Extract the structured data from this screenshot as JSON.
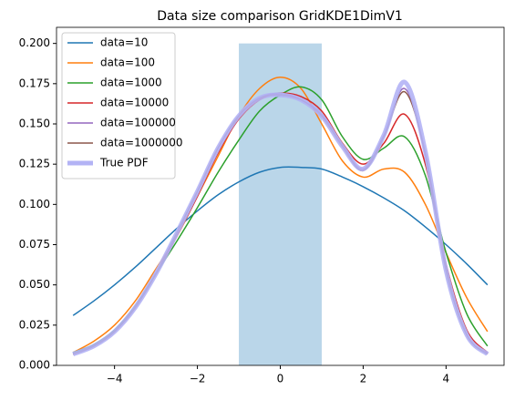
{
  "chart_data": {
    "type": "line",
    "title": "Data size comparison GridKDE1DimV1",
    "x": [
      -5,
      -4.5,
      -4,
      -3.5,
      -3,
      -2.5,
      -2,
      -1.5,
      -1,
      -0.5,
      0,
      0.5,
      1,
      1.5,
      2,
      2.5,
      3,
      3.5,
      4,
      4.5,
      5
    ],
    "series": [
      {
        "name": "data=10",
        "color": "#1f77b4",
        "values": [
          0.031,
          0.04,
          0.05,
          0.061,
          0.073,
          0.085,
          0.096,
          0.106,
          0.114,
          0.12,
          0.123,
          0.123,
          0.122,
          0.117,
          0.111,
          0.104,
          0.096,
          0.086,
          0.075,
          0.063,
          0.05
        ]
      },
      {
        "name": "data=100",
        "color": "#ff7f0e",
        "values": [
          0.008,
          0.015,
          0.025,
          0.04,
          0.06,
          0.08,
          0.105,
          0.13,
          0.155,
          0.172,
          0.179,
          0.172,
          0.15,
          0.127,
          0.117,
          0.122,
          0.12,
          0.1,
          0.07,
          0.042,
          0.021
        ]
      },
      {
        "name": "data=1000",
        "color": "#2ca02c",
        "values": [
          0.008,
          0.013,
          0.022,
          0.037,
          0.057,
          0.077,
          0.098,
          0.12,
          0.14,
          0.158,
          0.168,
          0.173,
          0.165,
          0.142,
          0.128,
          0.135,
          0.142,
          0.118,
          0.07,
          0.032,
          0.012
        ]
      },
      {
        "name": "data=10000",
        "color": "#d62728",
        "values": [
          0.007,
          0.012,
          0.021,
          0.036,
          0.057,
          0.08,
          0.105,
          0.132,
          0.153,
          0.165,
          0.169,
          0.167,
          0.158,
          0.138,
          0.125,
          0.138,
          0.156,
          0.125,
          0.063,
          0.022,
          0.008
        ]
      },
      {
        "name": "data=100000",
        "color": "#9467bd",
        "values": [
          0.007,
          0.012,
          0.021,
          0.036,
          0.057,
          0.082,
          0.108,
          0.135,
          0.155,
          0.166,
          0.169,
          0.165,
          0.156,
          0.137,
          0.122,
          0.143,
          0.172,
          0.132,
          0.06,
          0.019,
          0.007
        ]
      },
      {
        "name": "data=1000000",
        "color": "#8c564b",
        "values": [
          0.007,
          0.012,
          0.021,
          0.036,
          0.057,
          0.082,
          0.108,
          0.135,
          0.155,
          0.166,
          0.168,
          0.165,
          0.155,
          0.136,
          0.121,
          0.142,
          0.17,
          0.131,
          0.059,
          0.019,
          0.007
        ]
      },
      {
        "name": "True PDF",
        "color": "#b3b3f5",
        "width": 5,
        "values": [
          0.007,
          0.012,
          0.021,
          0.036,
          0.057,
          0.082,
          0.108,
          0.135,
          0.155,
          0.166,
          0.168,
          0.165,
          0.155,
          0.136,
          0.122,
          0.143,
          0.176,
          0.133,
          0.059,
          0.019,
          0.007
        ]
      }
    ],
    "span": {
      "x": [
        -1,
        1
      ],
      "y": [
        0,
        0.2
      ],
      "color": "#bad6e9"
    },
    "xlim": [
      -5.4,
      5.4
    ],
    "ylim": [
      0,
      0.21
    ],
    "xticks": [
      {
        "value": -4,
        "label": "−4"
      },
      {
        "value": -2,
        "label": "−2"
      },
      0,
      2,
      4
    ],
    "yticks": [
      {
        "value": 0,
        "label": "0.000"
      },
      {
        "value": 0.025,
        "label": "0.025"
      },
      {
        "value": 0.05,
        "label": "0.050"
      },
      {
        "value": 0.075,
        "label": "0.075"
      },
      {
        "value": 0.1,
        "label": "0.100"
      },
      {
        "value": 0.125,
        "label": "0.125"
      },
      {
        "value": 0.15,
        "label": "0.150"
      },
      {
        "value": 0.175,
        "label": "0.175"
      },
      {
        "value": 0.2,
        "label": "0.200"
      }
    ],
    "legend": "upper left"
  }
}
